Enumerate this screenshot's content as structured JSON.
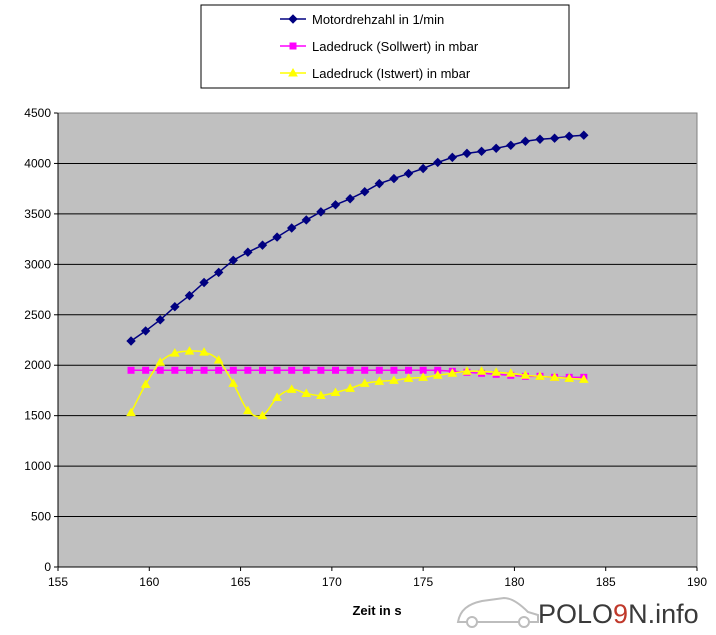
{
  "chart_data": {
    "type": "line",
    "xlabel": "Zeit in s",
    "ylabel": "",
    "xlim": [
      155,
      190
    ],
    "ylim": [
      0,
      4500
    ],
    "xticks": [
      155,
      160,
      165,
      170,
      175,
      180,
      185,
      190
    ],
    "yticks": [
      0,
      500,
      1000,
      1500,
      2000,
      2500,
      3000,
      3500,
      4000,
      4500
    ],
    "grid": "horizontal",
    "legend": "top",
    "colors": {
      "plot_area": "#c0c0c0",
      "gridline": "#000000"
    },
    "series": [
      {
        "name": "Motordrehzahl in 1/min",
        "color": "#000080",
        "marker": "diamond",
        "x": [
          159.0,
          159.8,
          160.6,
          161.4,
          162.2,
          163.0,
          163.8,
          164.6,
          165.4,
          166.2,
          167.0,
          167.8,
          168.6,
          169.4,
          170.2,
          171.0,
          171.8,
          172.6,
          173.4,
          174.2,
          175.0,
          175.8,
          176.6,
          177.4,
          178.2,
          179.0,
          179.8,
          180.6,
          181.4,
          182.2,
          183.0,
          183.8
        ],
        "y": [
          2240,
          2340,
          2450,
          2580,
          2690,
          2820,
          2920,
          3040,
          3120,
          3190,
          3270,
          3360,
          3440,
          3520,
          3590,
          3650,
          3720,
          3800,
          3850,
          3900,
          3950,
          4010,
          4060,
          4100,
          4120,
          4150,
          4180,
          4220,
          4240,
          4250,
          4270,
          4280
        ]
      },
      {
        "name": "Ladedruck (Sollwert) in mbar",
        "color": "#ff00ff",
        "marker": "square",
        "x": [
          159.0,
          159.8,
          160.6,
          161.4,
          162.2,
          163.0,
          163.8,
          164.6,
          165.4,
          166.2,
          167.0,
          167.8,
          168.6,
          169.4,
          170.2,
          171.0,
          171.8,
          172.6,
          173.4,
          174.2,
          175.0,
          175.8,
          176.6,
          177.4,
          178.2,
          179.0,
          179.8,
          180.6,
          181.4,
          182.2,
          183.0,
          183.8
        ],
        "y": [
          1950,
          1950,
          1950,
          1950,
          1950,
          1950,
          1950,
          1950,
          1950,
          1950,
          1950,
          1950,
          1950,
          1950,
          1950,
          1950,
          1950,
          1950,
          1950,
          1950,
          1950,
          1950,
          1940,
          1930,
          1920,
          1910,
          1900,
          1890,
          1890,
          1880,
          1880,
          1880
        ]
      },
      {
        "name": "Ladedruck (Istwert) in mbar",
        "color": "#ffff00",
        "marker": "triangle",
        "x": [
          159.0,
          159.8,
          160.6,
          161.4,
          162.2,
          163.0,
          163.8,
          164.6,
          165.4,
          166.2,
          167.0,
          167.8,
          168.6,
          169.4,
          170.2,
          171.0,
          171.8,
          172.6,
          173.4,
          174.2,
          175.0,
          175.8,
          176.6,
          177.4,
          178.2,
          179.0,
          179.8,
          180.6,
          181.4,
          182.2,
          183.0,
          183.8
        ],
        "y": [
          1530,
          1810,
          2030,
          2120,
          2140,
          2130,
          2050,
          1820,
          1550,
          1500,
          1680,
          1760,
          1720,
          1700,
          1730,
          1770,
          1820,
          1840,
          1850,
          1870,
          1880,
          1900,
          1920,
          1940,
          1940,
          1930,
          1920,
          1900,
          1890,
          1880,
          1870,
          1860
        ]
      }
    ]
  },
  "watermark": {
    "text_pre": "POLO",
    "text_nine": "9",
    "text_post": "N",
    "text_suffix": ".info",
    "nine_color": "#c0392b"
  }
}
